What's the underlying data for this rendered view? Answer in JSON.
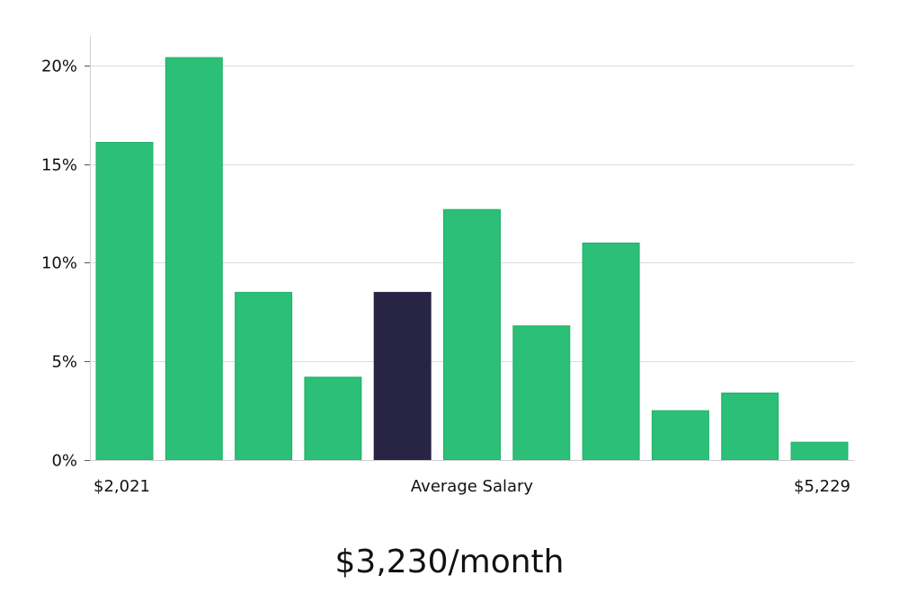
{
  "chart_data": {
    "type": "bar",
    "title": "",
    "ylabel": "",
    "xlabel": "Average Salary",
    "x_min_label": "$2,021",
    "x_max_label": "$5,229",
    "ylim": [
      0,
      21.5
    ],
    "yticks": [
      0,
      5,
      10,
      15,
      20
    ],
    "ytick_labels": [
      "0%",
      "5%",
      "10%",
      "15%",
      "20%"
    ],
    "grid": true,
    "values": [
      16.1,
      20.4,
      8.5,
      4.2,
      8.5,
      12.7,
      6.8,
      11.0,
      2.5,
      3.4,
      0.9
    ],
    "highlight_index": 4,
    "colors": {
      "bar": "#2bbf77",
      "bar_edge": "#22b06c",
      "highlight": "#282444"
    }
  },
  "headline": "$3,230/month"
}
